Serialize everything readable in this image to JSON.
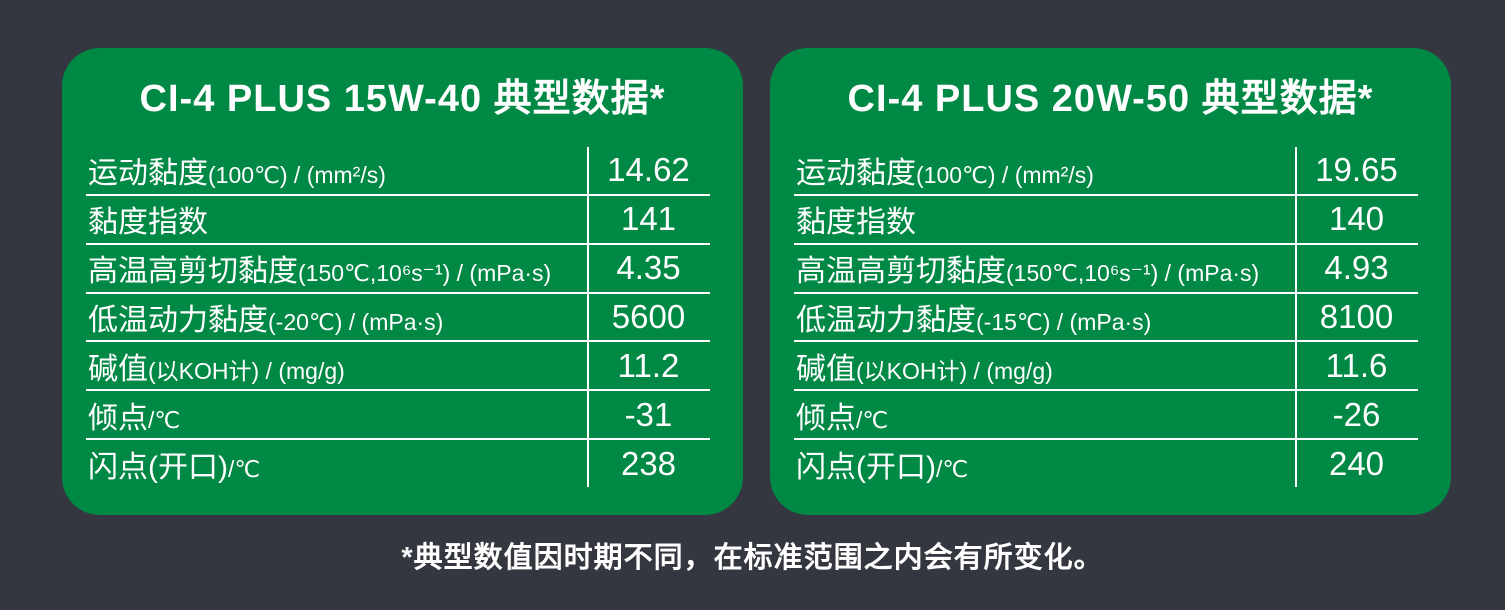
{
  "colors": {
    "background": "#34373F",
    "panel_green": "#008845",
    "text": "#FFFFFF"
  },
  "footnote": "*典型数值因时期不同，在标准范围之内会有所变化。",
  "tables": [
    {
      "title": "CI-4 PLUS 15W-40 典型数据*",
      "rows": [
        {
          "label": "运动黏度",
          "label_detail": "(100℃) / (mm²/s)",
          "value": "14.62"
        },
        {
          "label": "黏度指数",
          "label_detail": "",
          "value": "141"
        },
        {
          "label": "高温高剪切黏度",
          "label_detail": "(150℃,10⁶s⁻¹) / (mPa·s)",
          "value": "4.35"
        },
        {
          "label": "低温动力黏度",
          "label_detail": "(-20℃) / (mPa·s)",
          "value": "5600"
        },
        {
          "label": "碱值",
          "label_detail": "(以KOH计) / (mg/g)",
          "value": "11.2"
        },
        {
          "label": "倾点",
          "label_detail": "/℃",
          "value": "-31"
        },
        {
          "label": "闪点(开口)",
          "label_detail": "/℃",
          "value": "238"
        }
      ]
    },
    {
      "title": "CI-4 PLUS 20W-50 典型数据*",
      "rows": [
        {
          "label": "运动黏度",
          "label_detail": "(100℃) / (mm²/s)",
          "value": "19.65"
        },
        {
          "label": "黏度指数",
          "label_detail": "",
          "value": "140"
        },
        {
          "label": "高温高剪切黏度",
          "label_detail": "(150℃,10⁶s⁻¹) / (mPa·s)",
          "value": "4.93"
        },
        {
          "label": "低温动力黏度",
          "label_detail": "(-15℃) / (mPa·s)",
          "value": "8100"
        },
        {
          "label": "碱值",
          "label_detail": "(以KOH计) / (mg/g)",
          "value": "11.6"
        },
        {
          "label": "倾点",
          "label_detail": "/℃",
          "value": "-26"
        },
        {
          "label": "闪点(开口)",
          "label_detail": "/℃",
          "value": "240"
        }
      ]
    }
  ],
  "chart_data": [
    {
      "type": "table",
      "title": "CI-4 PLUS 15W-40 典型数据*",
      "rows": [
        [
          "运动黏度(100℃) / (mm²/s)",
          "14.62"
        ],
        [
          "黏度指数",
          "141"
        ],
        [
          "高温高剪切黏度(150℃,10⁶s⁻¹) / (mPa·s)",
          "4.35"
        ],
        [
          "低温动力黏度(-20℃) / (mPa·s)",
          "5600"
        ],
        [
          "碱值(以KOH计) / (mg/g)",
          "11.2"
        ],
        [
          "倾点/℃",
          "-31"
        ],
        [
          "闪点(开口)/℃",
          "238"
        ]
      ]
    },
    {
      "type": "table",
      "title": "CI-4 PLUS 20W-50 典型数据*",
      "rows": [
        [
          "运动黏度(100℃) / (mm²/s)",
          "19.65"
        ],
        [
          "黏度指数",
          "140"
        ],
        [
          "高温高剪切黏度(150℃,10⁶s⁻¹) / (mPa·s)",
          "4.93"
        ],
        [
          "低温动力黏度(-15℃) / (mPa·s)",
          "8100"
        ],
        [
          "碱值(以KOH计) / (mg/g)",
          "11.6"
        ],
        [
          "倾点/℃",
          "-26"
        ],
        [
          "闪点(开口)/℃",
          "240"
        ]
      ]
    }
  ]
}
